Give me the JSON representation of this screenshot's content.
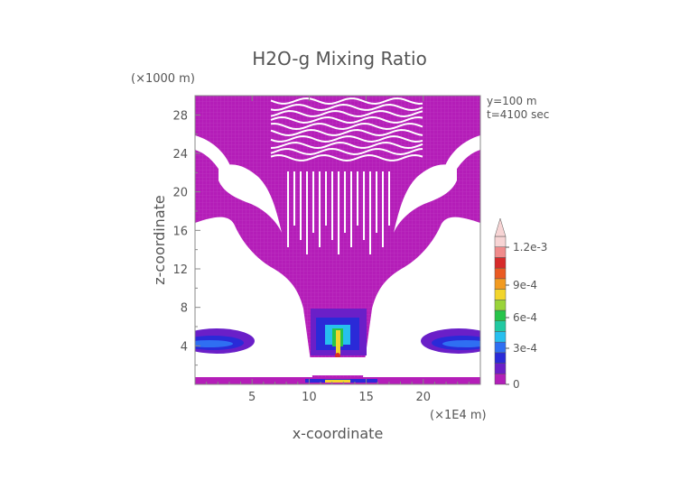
{
  "chart_data": {
    "type": "heatmap",
    "title": "H2O-g Mixing Ratio",
    "xlabel": "x-coordinate",
    "ylabel": "z-coordinate",
    "x_unit": "(×1E4 m)",
    "y_unit": "(×1000 m)",
    "info_lines": [
      "y=100 m",
      "t=4100 sec"
    ],
    "xlim": [
      0,
      25
    ],
    "ylim": [
      0,
      30
    ],
    "x_ticks": [
      5,
      10,
      15,
      20
    ],
    "y_ticks": [
      4,
      8,
      12,
      16,
      20,
      24,
      28
    ],
    "colorbar": {
      "labels": [
        "1.2e-3",
        "9e-4",
        "6e-4",
        "3e-4",
        "0"
      ],
      "levels": [
        0,
        0.0001,
        0.0002,
        0.0003,
        0.0004,
        0.0005,
        0.0006,
        0.0007,
        0.0008,
        0.0009,
        0.001,
        0.0011,
        0.0012,
        0.0013
      ],
      "colors": [
        "#b21fb8",
        "#6a1fc8",
        "#2a2ad8",
        "#2f6ff2",
        "#27bfef",
        "#21c9a2",
        "#27c44a",
        "#9ad43a",
        "#f2d52c",
        "#f29a20",
        "#ea5a22",
        "#d72a2a",
        "#f08b8b",
        "#f7d4d4"
      ]
    }
  }
}
